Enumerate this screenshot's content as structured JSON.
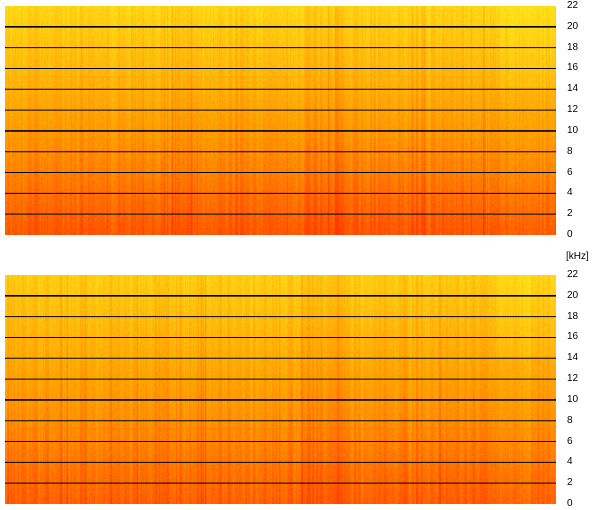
{
  "chart_data": [
    {
      "type": "heatmap",
      "channel": "top",
      "yticks": [
        22,
        20,
        18,
        16,
        14,
        12,
        10,
        8,
        6,
        4,
        2,
        0
      ],
      "ylim": [
        0,
        22
      ],
      "colors": {
        "low": "#ff3000",
        "mid": "#ff9a00",
        "high": "#ffe41a"
      }
    },
    {
      "type": "heatmap",
      "channel": "bottom",
      "yticks": [
        22,
        20,
        18,
        16,
        14,
        12,
        10,
        8,
        6,
        4,
        2,
        0
      ],
      "ylim": [
        0,
        22
      ],
      "colors": {
        "low": "#ff3000",
        "mid": "#ff9a00",
        "high": "#ffe41a"
      }
    }
  ],
  "unit_label": "[kHz]"
}
